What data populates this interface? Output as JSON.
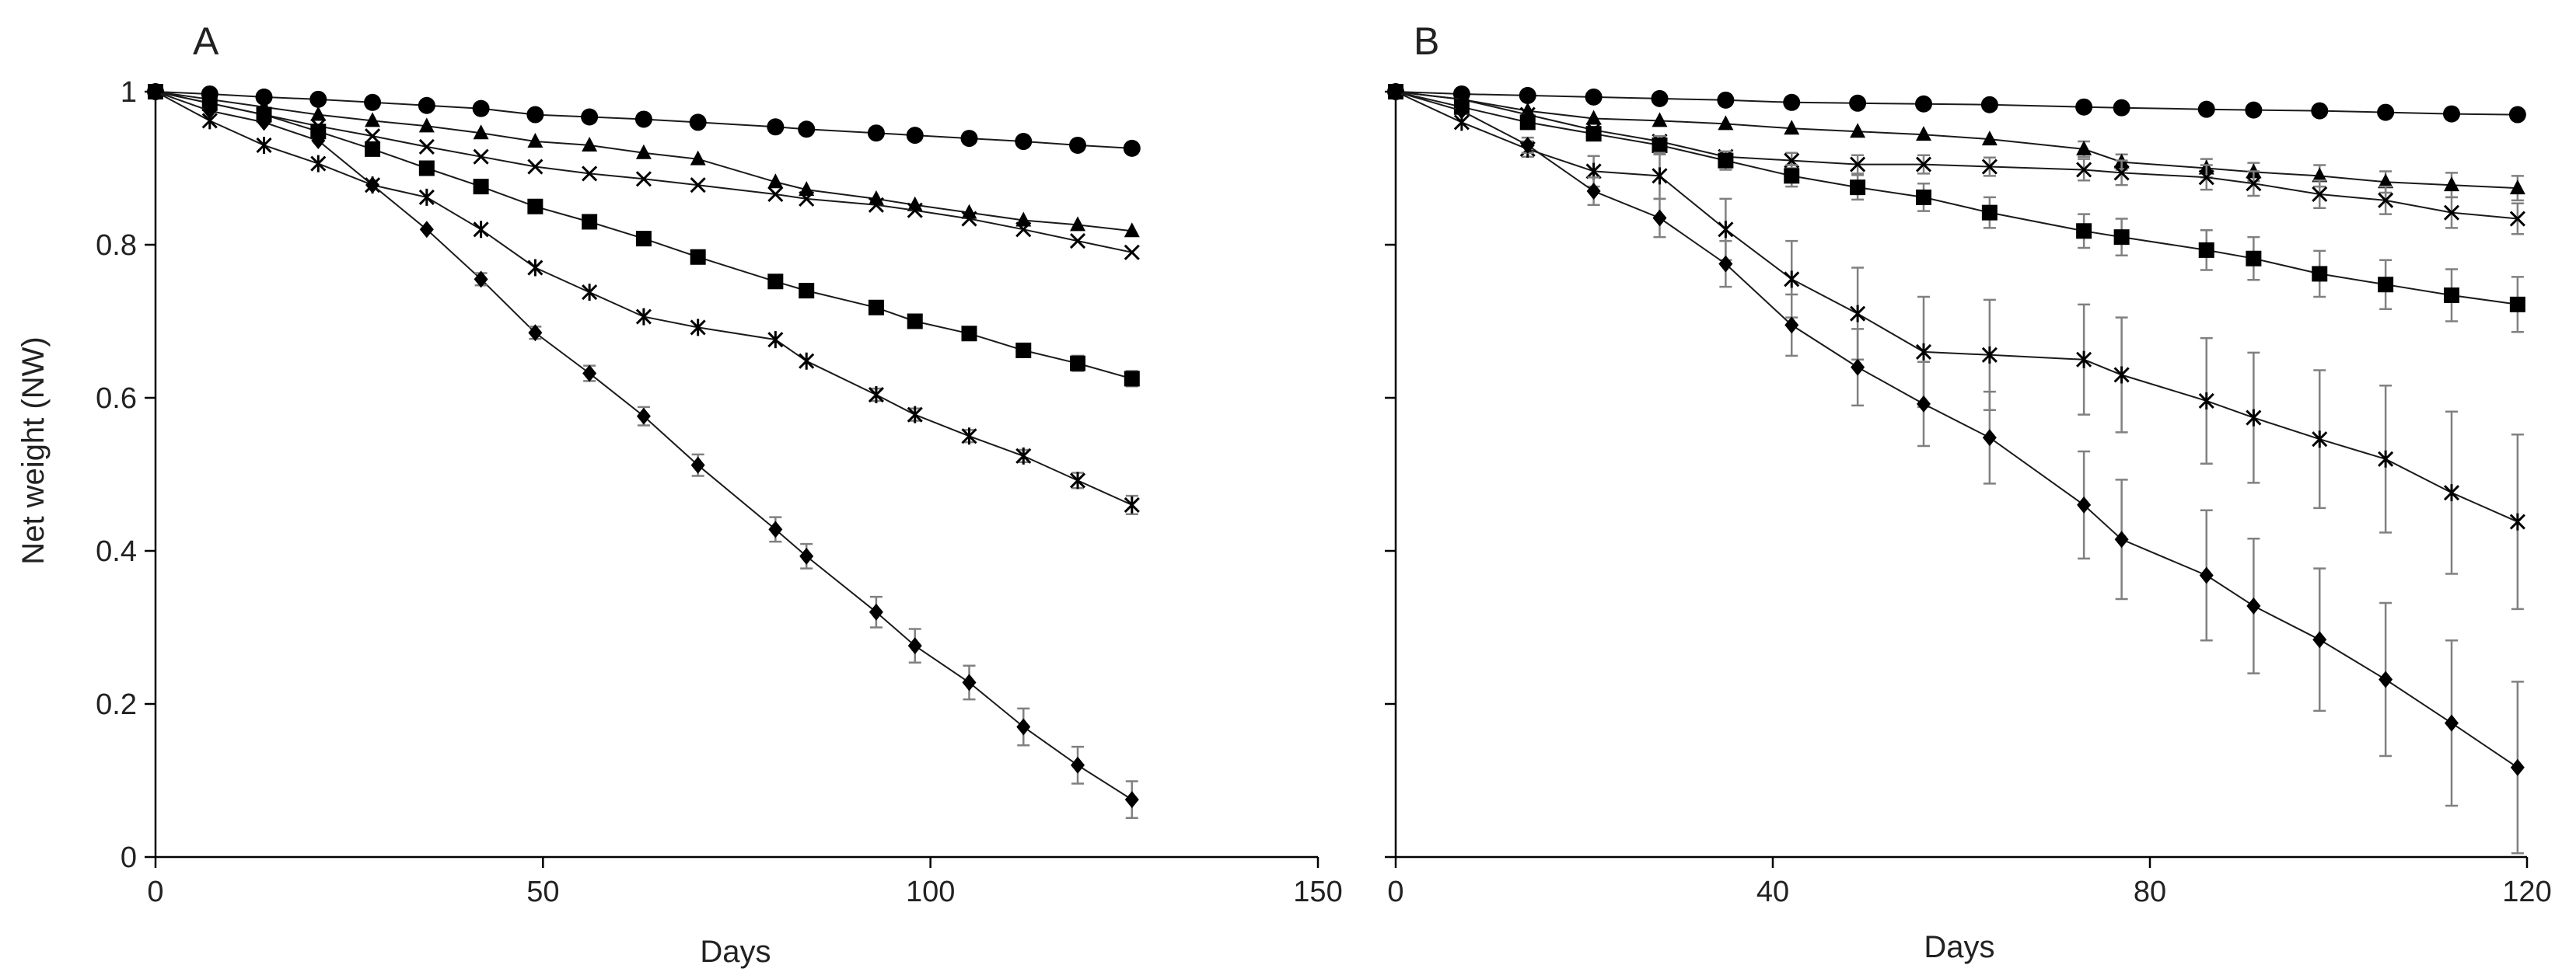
{
  "figure": {
    "ylabel": "Net weight (NW)",
    "colors": {
      "axis": "#000000",
      "marker": "#000000",
      "error_bar": "#808080",
      "line": "#1a1a1a"
    }
  },
  "chart_data": [
    {
      "panel": "A",
      "type": "line",
      "xlabel": "Days",
      "ylabel": "Net weight (NW)",
      "xlim": [
        0,
        150
      ],
      "ylim": [
        0,
        1
      ],
      "xticks": [
        0,
        50,
        100,
        150
      ],
      "yticks": [
        0,
        0.2,
        0.4,
        0.6,
        0.8,
        1
      ],
      "ytick_labels": [
        "0",
        "0.2",
        "0.4",
        "0.6",
        "0.8",
        "1"
      ],
      "grid": false,
      "legend": "none",
      "series": [
        {
          "marker": "circle",
          "x": [
            0,
            7,
            14,
            21,
            28,
            35,
            42,
            49,
            56,
            63,
            70,
            80,
            84,
            93,
            98,
            105,
            112,
            119,
            126
          ],
          "y": [
            1.0,
            0.997,
            0.993,
            0.99,
            0.986,
            0.982,
            0.978,
            0.97,
            0.967,
            0.964,
            0.96,
            0.954,
            0.951,
            0.946,
            0.943,
            0.939,
            0.935,
            0.93,
            0.926
          ],
          "err": [
            0,
            0,
            0,
            0,
            0,
            0,
            0,
            0,
            0,
            0,
            0,
            0,
            0,
            0,
            0,
            0,
            0,
            0,
            0
          ]
        },
        {
          "marker": "triangle",
          "x": [
            0,
            7,
            14,
            21,
            28,
            35,
            42,
            49,
            56,
            63,
            70,
            80,
            84,
            93,
            98,
            105,
            112,
            119,
            126
          ],
          "y": [
            1.0,
            0.99,
            0.98,
            0.97,
            0.962,
            0.955,
            0.946,
            0.935,
            0.93,
            0.92,
            0.912,
            0.882,
            0.872,
            0.86,
            0.852,
            0.842,
            0.832,
            0.826,
            0.818
          ],
          "err": [
            0,
            0,
            0,
            0,
            0,
            0,
            0,
            0,
            0,
            0,
            0,
            0,
            0,
            0,
            0,
            0,
            0,
            0,
            0
          ]
        },
        {
          "marker": "x",
          "x": [
            0,
            7,
            14,
            21,
            28,
            35,
            42,
            49,
            56,
            63,
            70,
            80,
            84,
            93,
            98,
            105,
            112,
            119,
            126
          ],
          "y": [
            1.0,
            0.985,
            0.97,
            0.955,
            0.942,
            0.928,
            0.915,
            0.902,
            0.893,
            0.886,
            0.878,
            0.866,
            0.86,
            0.852,
            0.845,
            0.834,
            0.82,
            0.805,
            0.79
          ],
          "err": [
            0,
            0,
            0,
            0,
            0,
            0,
            0,
            0,
            0,
            0,
            0,
            0,
            0,
            0,
            0,
            0,
            0,
            0,
            0
          ]
        },
        {
          "marker": "square",
          "x": [
            0,
            7,
            14,
            21,
            28,
            35,
            42,
            49,
            56,
            63,
            70,
            80,
            84,
            93,
            98,
            105,
            112,
            119,
            126
          ],
          "y": [
            1.0,
            0.985,
            0.97,
            0.948,
            0.925,
            0.9,
            0.876,
            0.85,
            0.83,
            0.808,
            0.784,
            0.752,
            0.74,
            0.718,
            0.7,
            0.684,
            0.662,
            0.645,
            0.625
          ],
          "err": [
            0,
            0,
            0,
            0,
            0,
            0,
            0,
            0,
            0,
            0,
            0,
            0,
            0,
            0,
            0,
            0.008,
            0.008,
            0.01,
            0.01
          ]
        },
        {
          "marker": "asterisk",
          "x": [
            0,
            7,
            14,
            21,
            28,
            35,
            42,
            49,
            56,
            63,
            70,
            80,
            84,
            93,
            98,
            105,
            112,
            119,
            126
          ],
          "y": [
            1.0,
            0.962,
            0.93,
            0.906,
            0.878,
            0.862,
            0.82,
            0.77,
            0.738,
            0.706,
            0.692,
            0.676,
            0.648,
            0.604,
            0.578,
            0.55,
            0.524,
            0.492,
            0.46
          ],
          "err": [
            0,
            0,
            0,
            0,
            0,
            0,
            0,
            0,
            0,
            0,
            0,
            0,
            0,
            0.008,
            0.008,
            0.008,
            0.008,
            0.01,
            0.012
          ]
        },
        {
          "marker": "diamond",
          "x": [
            0,
            7,
            14,
            21,
            28,
            35,
            42,
            49,
            56,
            63,
            70,
            80,
            84,
            93,
            98,
            105,
            112,
            119,
            126
          ],
          "y": [
            1.0,
            0.975,
            0.96,
            0.936,
            0.878,
            0.82,
            0.755,
            0.685,
            0.632,
            0.576,
            0.512,
            0.428,
            0.393,
            0.32,
            0.276,
            0.228,
            0.17,
            0.12,
            0.075
          ],
          "err": [
            0,
            0,
            0,
            0,
            0,
            0,
            0.008,
            0.008,
            0.01,
            0.012,
            0.014,
            0.016,
            0.016,
            0.02,
            0.022,
            0.022,
            0.024,
            0.024,
            0.024
          ]
        }
      ]
    },
    {
      "panel": "B",
      "type": "line",
      "xlabel": "Days",
      "ylabel": "",
      "xlim": [
        0,
        120
      ],
      "ylim": [
        0,
        1
      ],
      "xticks": [
        0,
        40,
        80,
        120
      ],
      "yticks": [
        0,
        0.2,
        0.4,
        0.6,
        0.8,
        1
      ],
      "ytick_labels": [],
      "grid": false,
      "legend": "none",
      "series": [
        {
          "marker": "circle",
          "x": [
            0,
            7,
            14,
            21,
            28,
            35,
            42,
            49,
            56,
            63,
            73,
            77,
            86,
            91,
            98,
            105,
            112,
            119
          ],
          "y": [
            1.0,
            0.997,
            0.995,
            0.993,
            0.991,
            0.989,
            0.986,
            0.985,
            0.984,
            0.983,
            0.98,
            0.979,
            0.977,
            0.976,
            0.975,
            0.973,
            0.971,
            0.97
          ],
          "err": [
            0,
            0,
            0,
            0,
            0,
            0,
            0,
            0,
            0,
            0,
            0,
            0,
            0,
            0,
            0,
            0,
            0,
            0
          ]
        },
        {
          "marker": "triangle",
          "x": [
            0,
            7,
            14,
            21,
            28,
            35,
            42,
            49,
            56,
            63,
            73,
            77,
            86,
            91,
            98,
            105,
            112,
            119
          ],
          "y": [
            1.0,
            0.99,
            0.975,
            0.965,
            0.962,
            0.958,
            0.952,
            0.948,
            0.944,
            0.938,
            0.925,
            0.908,
            0.9,
            0.895,
            0.89,
            0.882,
            0.878,
            0.874
          ],
          "err": [
            0,
            0,
            0,
            0,
            0,
            0,
            0,
            0,
            0,
            0,
            0.01,
            0.01,
            0.012,
            0.012,
            0.014,
            0.014,
            0.016,
            0.016
          ]
        },
        {
          "marker": "x",
          "x": [
            0,
            7,
            14,
            21,
            28,
            35,
            42,
            49,
            56,
            63,
            73,
            77,
            86,
            91,
            98,
            105,
            112,
            119
          ],
          "y": [
            1.0,
            0.99,
            0.97,
            0.95,
            0.935,
            0.915,
            0.91,
            0.905,
            0.905,
            0.902,
            0.898,
            0.894,
            0.888,
            0.88,
            0.866,
            0.858,
            0.842,
            0.834
          ],
          "err": [
            0,
            0,
            0,
            0,
            0,
            0,
            0.01,
            0.012,
            0.012,
            0.012,
            0.014,
            0.016,
            0.016,
            0.016,
            0.018,
            0.018,
            0.02,
            0.02
          ]
        },
        {
          "marker": "square",
          "x": [
            0,
            7,
            14,
            21,
            28,
            35,
            42,
            49,
            56,
            63,
            73,
            77,
            86,
            91,
            98,
            105,
            112,
            119
          ],
          "y": [
            1.0,
            0.98,
            0.96,
            0.945,
            0.93,
            0.91,
            0.89,
            0.875,
            0.862,
            0.842,
            0.818,
            0.81,
            0.793,
            0.782,
            0.762,
            0.748,
            0.734,
            0.722
          ],
          "err": [
            0,
            0,
            0,
            0,
            0.012,
            0.012,
            0.014,
            0.016,
            0.018,
            0.02,
            0.022,
            0.024,
            0.026,
            0.028,
            0.03,
            0.032,
            0.034,
            0.036
          ]
        },
        {
          "marker": "asterisk",
          "x": [
            0,
            7,
            14,
            21,
            28,
            35,
            42,
            49,
            56,
            63,
            73,
            77,
            86,
            91,
            98,
            105,
            112,
            119
          ],
          "y": [
            1.0,
            0.96,
            0.925,
            0.896,
            0.89,
            0.82,
            0.755,
            0.71,
            0.66,
            0.656,
            0.65,
            0.63,
            0.596,
            0.574,
            0.546,
            0.52,
            0.476,
            0.438
          ],
          "err": [
            0,
            0,
            0.01,
            0.02,
            0.03,
            0.04,
            0.05,
            0.06,
            0.072,
            0.072,
            0.072,
            0.075,
            0.082,
            0.085,
            0.09,
            0.096,
            0.106,
            0.114
          ]
        },
        {
          "marker": "diamond",
          "x": [
            0,
            7,
            14,
            21,
            28,
            35,
            42,
            49,
            56,
            63,
            73,
            77,
            86,
            91,
            98,
            105,
            112,
            119
          ],
          "y": [
            1.0,
            0.975,
            0.93,
            0.87,
            0.835,
            0.775,
            0.695,
            0.64,
            0.592,
            0.548,
            0.46,
            0.415,
            0.368,
            0.328,
            0.284,
            0.232,
            0.175,
            0.117
          ],
          "err": [
            0,
            0,
            0.01,
            0.018,
            0.025,
            0.03,
            0.04,
            0.05,
            0.055,
            0.06,
            0.07,
            0.078,
            0.085,
            0.088,
            0.093,
            0.1,
            0.108,
            0.112
          ]
        }
      ]
    }
  ]
}
